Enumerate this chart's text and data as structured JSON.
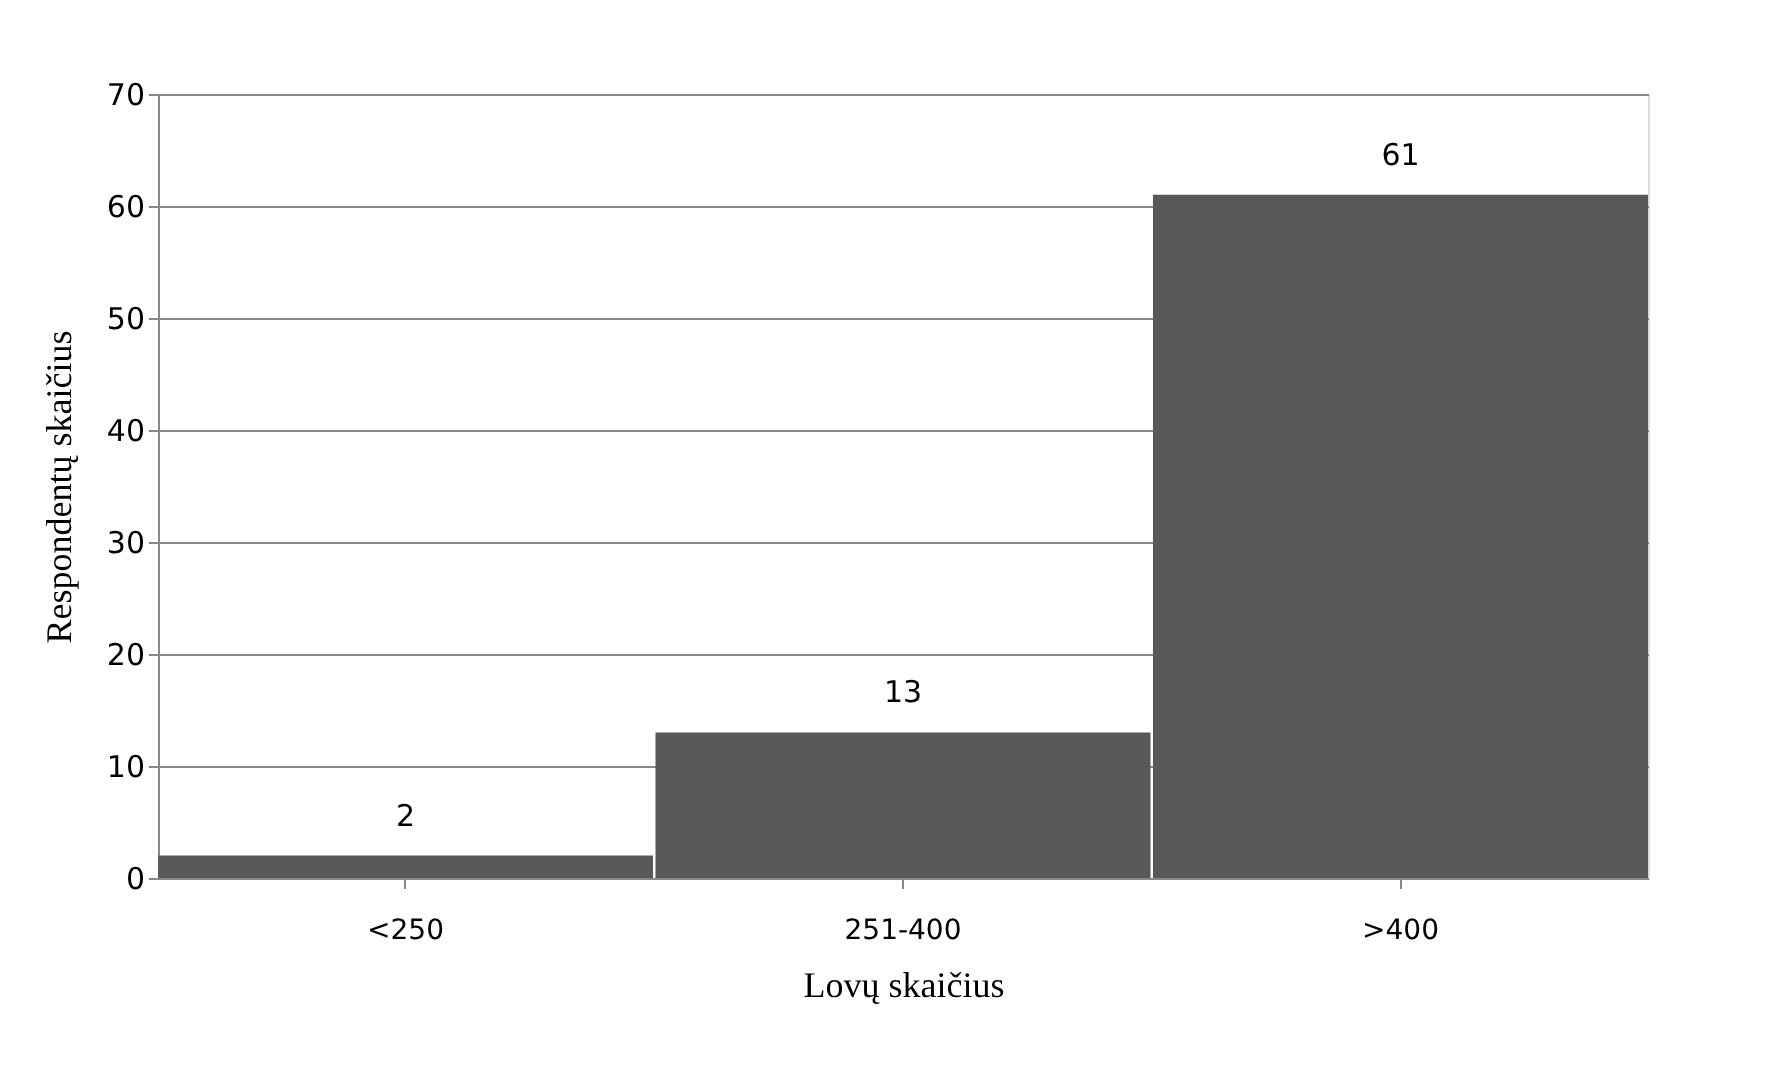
{
  "chart_data": {
    "type": "bar",
    "categories": [
      "<250",
      "251-400",
      ">400"
    ],
    "values": [
      2,
      13,
      61
    ],
    "color": "#595959",
    "xlabel": "Lovų skaičius",
    "ylabel": "Respondentų skaičius",
    "ylim": [
      0,
      70
    ],
    "yticks": [
      0,
      10,
      20,
      30,
      40,
      50,
      60,
      70
    ],
    "grid": "y",
    "data_labels": true
  }
}
